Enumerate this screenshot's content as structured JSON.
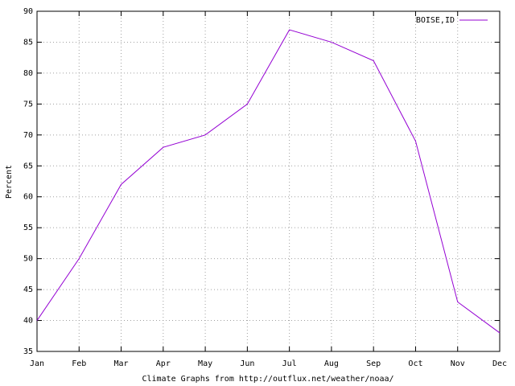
{
  "chart_data": {
    "type": "line",
    "x_label": "Climate Graphs from http://outflux.net/weather/noaa/",
    "y_label": "Percent",
    "categories": [
      "Jan",
      "Feb",
      "Mar",
      "Apr",
      "May",
      "Jun",
      "Jul",
      "Aug",
      "Sep",
      "Oct",
      "Nov",
      "Dec"
    ],
    "series": [
      {
        "name": "BOISE,ID",
        "color": "#9400d3",
        "values": [
          40,
          50,
          62,
          68,
          70,
          75,
          87,
          85,
          82,
          69,
          43,
          38
        ]
      }
    ],
    "ylim": [
      35,
      90
    ],
    "yticks": [
      35,
      40,
      45,
      50,
      55,
      60,
      65,
      70,
      75,
      80,
      85,
      90
    ],
    "grid": true,
    "legend": "top-right"
  }
}
